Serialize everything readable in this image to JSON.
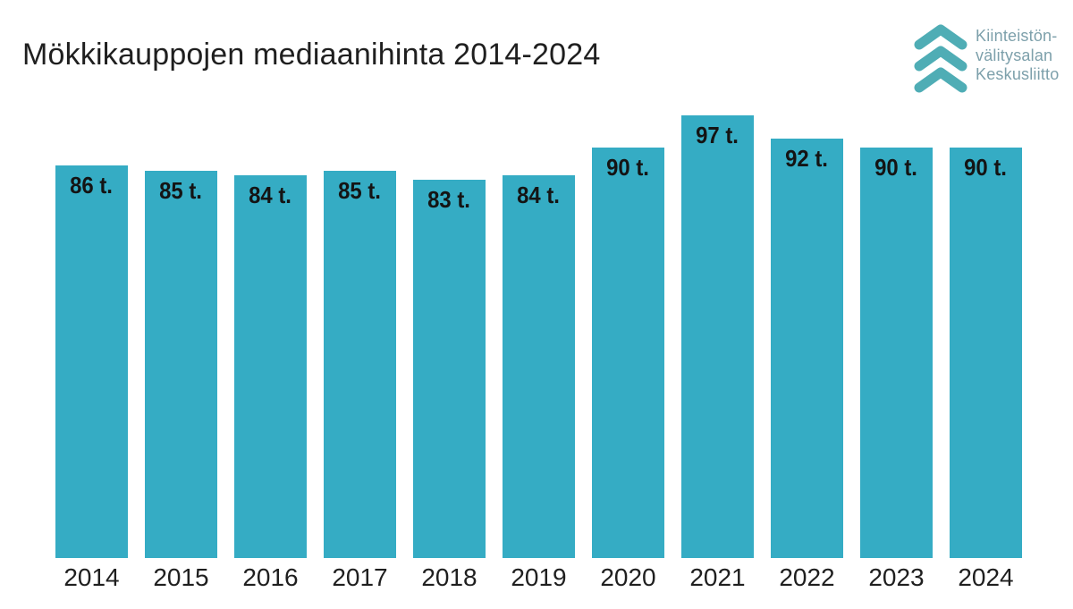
{
  "page": {
    "background_color": "#ffffff",
    "text_color": "#1f1f1f"
  },
  "header": {
    "title": "Mökkikauppojen mediaanihinta 2014-2024",
    "logo": {
      "name": "Kiinteistönvälitysalan Keskusliitto",
      "lines": [
        "Kiinteistön-",
        "välitysalan",
        "Keskusliitto"
      ],
      "chevron_color": "#4fadb5",
      "text_color": "#7da0ab"
    }
  },
  "chart_data": {
    "type": "bar",
    "title": "Mökkikauppojen mediaanihinta 2014-2024",
    "categories": [
      "2014",
      "2015",
      "2016",
      "2017",
      "2018",
      "2019",
      "2020",
      "2021",
      "2022",
      "2023",
      "2024"
    ],
    "values": [
      86,
      85,
      84,
      85,
      83,
      84,
      90,
      97,
      92,
      90,
      90
    ],
    "bar_labels": [
      "86 t.",
      "85 t.",
      "84 t.",
      "85 t.",
      "83 t.",
      "84 t.",
      "90 t.",
      "97 t.",
      "92 t.",
      "90 t.",
      "90 t."
    ],
    "unit_suffix": "t.",
    "xlabel": "",
    "ylabel": "",
    "ylim": [
      0,
      103
    ],
    "grid": false,
    "legend": false,
    "value_labels_position": "inside-top",
    "bar_color": "#35acc4",
    "bar_label_color": "#141414",
    "axis_label_color": "#1f1f1f"
  }
}
